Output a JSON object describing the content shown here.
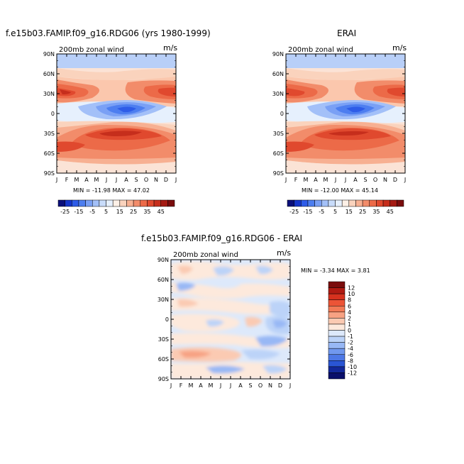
{
  "panels": {
    "p1": {
      "title": "f.e15b03.FAMIP.f09_g16.RDG06 (yrs 1980-1999)",
      "subtitle": "200mb zonal wind",
      "units": "m/s",
      "stats": "MIN = -11.98   MAX =   47.02"
    },
    "p2": {
      "title": "ERAI",
      "subtitle": "200mb zonal wind",
      "units": "m/s",
      "stats": "MIN = -12.00   MAX =   45.14"
    },
    "p3": {
      "title": "f.e15b03.FAMIP.f09_g16.RDG06 - ERAI",
      "subtitle": "200mb zonal wind",
      "units": "m/s",
      "stats": "MIN =   -3.34  MAX =    3.81"
    }
  },
  "axes": {
    "y_ticks": [
      "90N",
      "60N",
      "30N",
      "0",
      "30S",
      "60S",
      "90S"
    ],
    "x_ticks": [
      "J",
      "F",
      "M",
      "A",
      "M",
      "J",
      "J",
      "A",
      "S",
      "O",
      "N",
      "D",
      "J"
    ]
  },
  "colorbars": {
    "top": {
      "labels": [
        "-25",
        "-15",
        "-5",
        "5",
        "15",
        "25",
        "35",
        "45"
      ],
      "colors": [
        "#0a0f7a",
        "#1535c8",
        "#2e5ce8",
        "#4d7ef0",
        "#7aa0f5",
        "#a3c0f8",
        "#c8dcfb",
        "#e6f0fd",
        "#fdf0e6",
        "#fad3bd",
        "#f7b092",
        "#f28c6a",
        "#ec6a48",
        "#e0492e",
        "#c62e1c",
        "#a51a12",
        "#7a0c0c"
      ]
    },
    "diff": {
      "labels": [
        "12",
        "10",
        "8",
        "6",
        "4",
        "2",
        "1",
        "0",
        "-1",
        "-2",
        "-4",
        "-6",
        "-8",
        "-10",
        "-12"
      ],
      "colors": [
        "#7a0c0c",
        "#b01a12",
        "#d6311e",
        "#ec5436",
        "#f27a56",
        "#f7a283",
        "#fbcab2",
        "#fde9dc",
        "#dde9fb",
        "#bcd3f8",
        "#98b8f5",
        "#7098ef",
        "#4d78e6",
        "#2a55d4",
        "#13289a",
        "#0a0f6a"
      ]
    }
  },
  "chart_data": [
    {
      "type": "heatmap",
      "title": "f.e15b03.FAMIP.f09_g16.RDG06 (yrs 1980-1999)",
      "subtitle": "200mb zonal wind",
      "units": "m/s",
      "x": [
        "J",
        "F",
        "M",
        "A",
        "M",
        "J",
        "J",
        "A",
        "S",
        "O",
        "N",
        "D",
        "J"
      ],
      "y": [
        "90N",
        "60N",
        "30N",
        "0",
        "30S",
        "60S",
        "90S"
      ],
      "min": -11.98,
      "max": 47.02,
      "levels": [
        -25,
        -20,
        -15,
        -10,
        -5,
        0,
        5,
        10,
        15,
        20,
        25,
        30,
        35,
        40,
        45
      ],
      "features": [
        {
          "lat": 30,
          "month_peak": 1,
          "value": 45
        },
        {
          "lat": 30,
          "month_peak": 12,
          "value": 40
        },
        {
          "lat": -30,
          "month_peak": 7,
          "value": 45
        },
        {
          "lat": 0,
          "month_peak": 7,
          "value": -12
        }
      ]
    },
    {
      "type": "heatmap",
      "title": "ERAI",
      "subtitle": "200mb zonal wind",
      "units": "m/s",
      "x": [
        "J",
        "F",
        "M",
        "A",
        "M",
        "J",
        "J",
        "A",
        "S",
        "O",
        "N",
        "D",
        "J"
      ],
      "y": [
        "90N",
        "60N",
        "30N",
        "0",
        "30S",
        "60S",
        "90S"
      ],
      "min": -12.0,
      "max": 45.14,
      "levels": [
        -25,
        -20,
        -15,
        -10,
        -5,
        0,
        5,
        10,
        15,
        20,
        25,
        30,
        35,
        40,
        45
      ],
      "features": [
        {
          "lat": 30,
          "month_peak": 1,
          "value": 42
        },
        {
          "lat": 30,
          "month_peak": 12,
          "value": 38
        },
        {
          "lat": -30,
          "month_peak": 7,
          "value": 43
        },
        {
          "lat": 0,
          "month_peak": 7,
          "value": -12
        }
      ]
    },
    {
      "type": "heatmap",
      "title": "f.e15b03.FAMIP.f09_g16.RDG06 - ERAI",
      "subtitle": "200mb zonal wind",
      "units": "m/s",
      "x": [
        "J",
        "F",
        "M",
        "A",
        "M",
        "J",
        "J",
        "A",
        "S",
        "O",
        "N",
        "D",
        "J"
      ],
      "y": [
        "90N",
        "60N",
        "30N",
        "0",
        "30S",
        "60S",
        "90S"
      ],
      "min": -3.34,
      "max": 3.81,
      "levels": [
        -12,
        -10,
        -8,
        -6,
        -4,
        -2,
        -1,
        0,
        1,
        2,
        4,
        6,
        8,
        10,
        12
      ]
    }
  ]
}
